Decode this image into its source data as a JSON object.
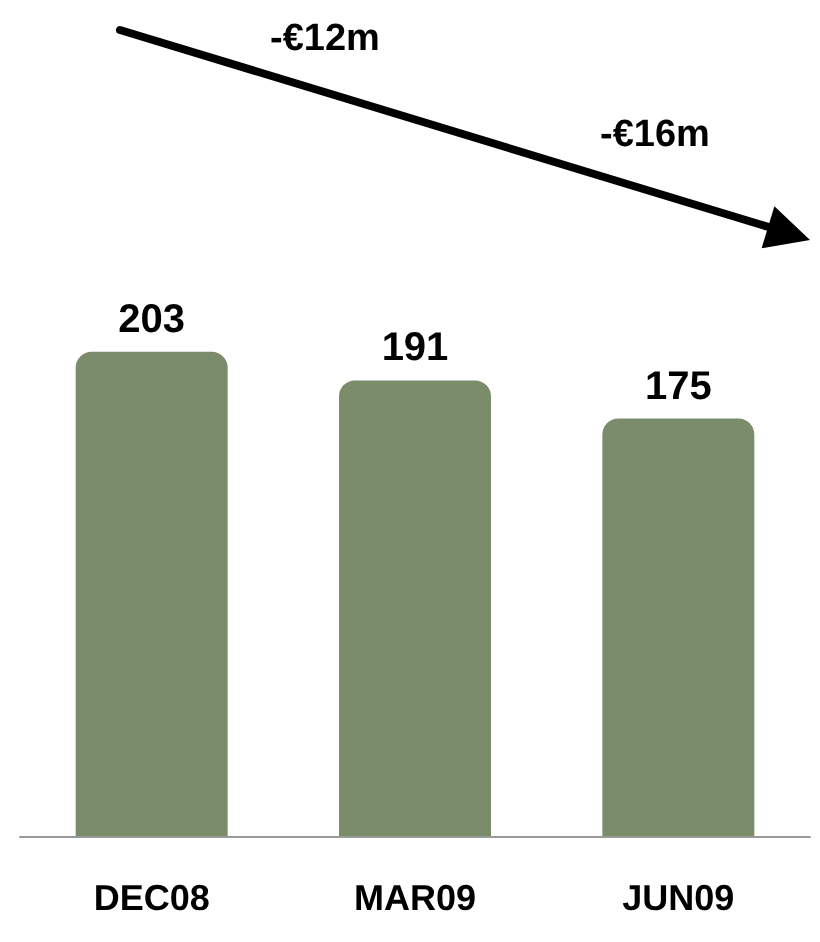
{
  "chart_data": {
    "type": "bar",
    "categories": [
      "DEC08",
      "MAR09",
      "JUN09"
    ],
    "values": [
      203,
      191,
      175
    ],
    "color": "#7a8c6a",
    "tick_labels": "x",
    "data_labels": true,
    "annotations": [
      "-€12m",
      "-€16m"
    ]
  }
}
